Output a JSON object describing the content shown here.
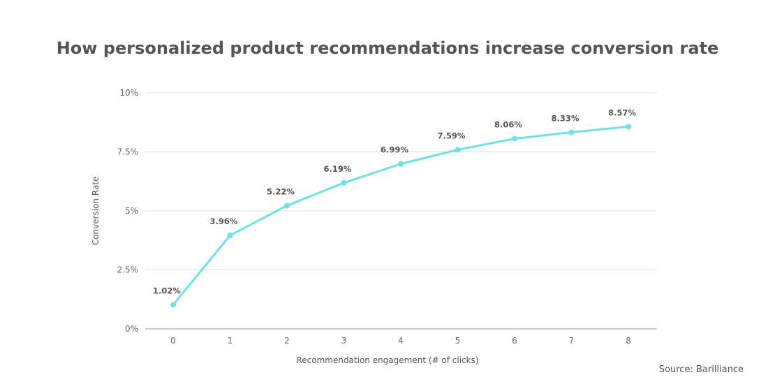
{
  "chart_data": {
    "type": "line",
    "title": "How personalized product recommendations increase conversion rate",
    "xlabel": "Recommendation engagement (# of clicks)",
    "ylabel": "Conversion Rate",
    "x": [
      0,
      1,
      2,
      3,
      4,
      5,
      6,
      7,
      8
    ],
    "x_tick_labels": [
      "0",
      "1",
      "2",
      "3",
      "4",
      "5",
      "6",
      "7",
      "8"
    ],
    "series": [
      {
        "values": [
          1.02,
          3.96,
          5.22,
          6.19,
          6.99,
          7.59,
          8.06,
          8.33,
          8.57
        ],
        "labels": [
          "1.02%",
          "3.96%",
          "5.22%",
          "6.19%",
          "6.99%",
          "7.59%",
          "8.06%",
          "8.33%",
          "8.57%"
        ],
        "color": "#6ee0e6"
      }
    ],
    "ylim": [
      0,
      10
    ],
    "y_ticks": [
      0,
      2.5,
      5,
      7.5,
      10
    ],
    "y_tick_labels": [
      "0%",
      "2.5%",
      "5%",
      "7.5%",
      "10%"
    ],
    "grid": true,
    "legend": "none"
  },
  "source": "Source: Barilliance",
  "colors": {
    "line": "#6ee0e6",
    "grid": "#e0e0e0",
    "text": "#555555"
  }
}
